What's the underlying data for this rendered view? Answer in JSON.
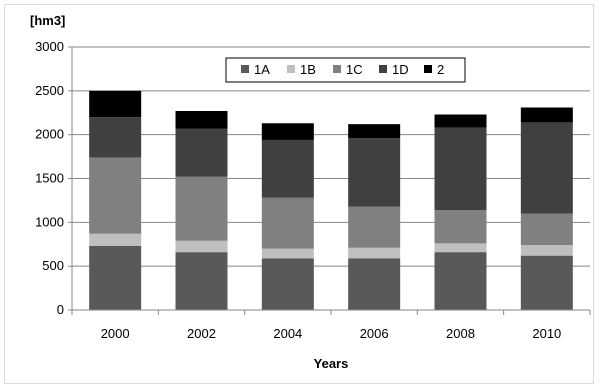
{
  "chart_data": {
    "type": "bar",
    "stacked": true,
    "unit_label": "[hm3]",
    "xlabel": "Years",
    "ylabel": "",
    "categories": [
      "2000",
      "2002",
      "2004",
      "2006",
      "2008",
      "2010"
    ],
    "ylim": [
      0,
      3000
    ],
    "yticks": [
      0,
      500,
      1000,
      1500,
      2000,
      2500,
      3000
    ],
    "grid": "horizontal",
    "legend_position": "top",
    "series": [
      {
        "name": "1A",
        "color": "#595959",
        "values": [
          730,
          660,
          590,
          590,
          660,
          620
        ]
      },
      {
        "name": "1B",
        "color": "#bfbfbf",
        "values": [
          140,
          130,
          110,
          120,
          100,
          120
        ]
      },
      {
        "name": "1C",
        "color": "#808080",
        "values": [
          870,
          730,
          580,
          470,
          380,
          360
        ]
      },
      {
        "name": "1D",
        "color": "#404040",
        "values": [
          460,
          550,
          660,
          780,
          940,
          1040
        ]
      },
      {
        "name": "2",
        "color": "#000000",
        "values": [
          300,
          200,
          190,
          160,
          150,
          170
        ]
      }
    ]
  }
}
